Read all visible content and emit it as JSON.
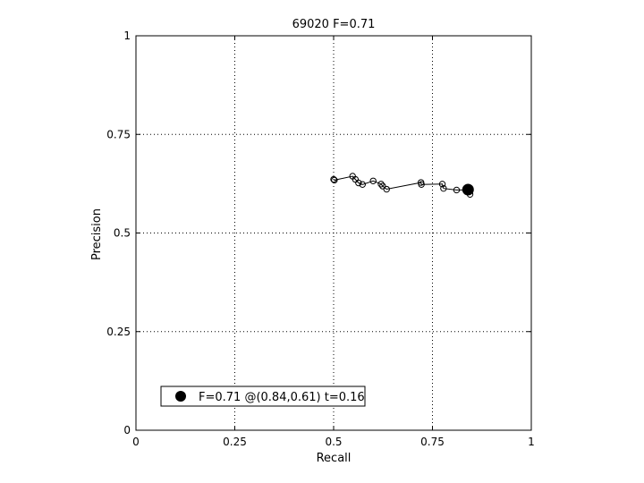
{
  "chart_data": {
    "type": "line",
    "title": "69020 F=0.71",
    "xlabel": "Recall",
    "ylabel": "Precision",
    "xlim": [
      0,
      1
    ],
    "ylim": [
      0,
      1
    ],
    "grid": true,
    "xticks": [
      0,
      0.25,
      0.5,
      0.75,
      1
    ],
    "xtick_labels": [
      "0",
      "0.25",
      "0.5",
      "0.75",
      "1"
    ],
    "yticks": [
      0,
      0.25,
      0.5,
      0.75,
      1
    ],
    "ytick_labels": [
      "0",
      "0.25",
      "0.5",
      "0.75",
      "1"
    ],
    "series": [
      {
        "marker": "open-circle",
        "color": "#000000",
        "x": [
          0.5,
          0.502,
          0.548,
          0.555,
          0.563,
          0.573,
          0.6,
          0.62,
          0.624,
          0.634,
          0.721,
          0.722,
          0.775,
          0.778,
          0.811,
          0.836,
          0.842,
          0.845
        ],
        "y": [
          0.636,
          0.634,
          0.644,
          0.636,
          0.627,
          0.623,
          0.632,
          0.624,
          0.619,
          0.611,
          0.628,
          0.623,
          0.624,
          0.613,
          0.609,
          0.609,
          0.605,
          0.598
        ]
      }
    ],
    "best_point": {
      "x": 0.84,
      "y": 0.61,
      "marker": "filled-circle",
      "color": "#000000"
    },
    "legend": {
      "placement": "bottom-left",
      "label": "F=0.71 @(0.84,0.61) t=0.16"
    }
  }
}
